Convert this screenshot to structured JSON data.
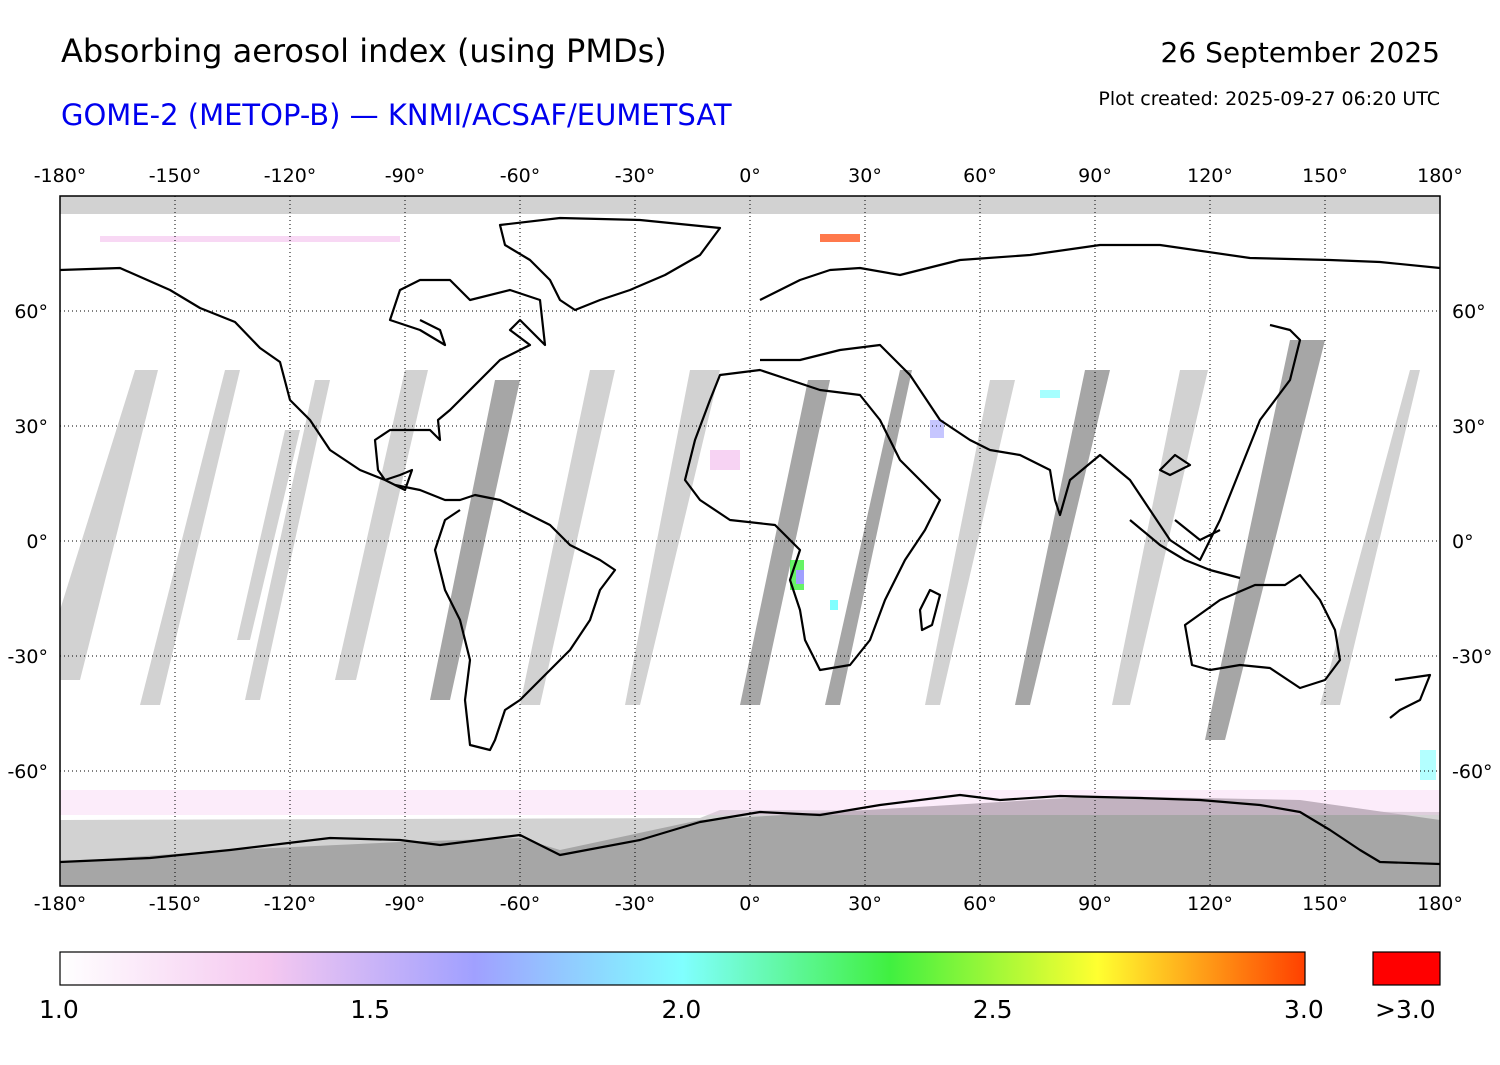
{
  "header": {
    "title": "Absorbing aerosol index (using PMDs)",
    "subtitle": "GOME-2 (METOP-B) — KNMI/ACSAF/EUMETSAT",
    "date": "26 September 2025",
    "created": "Plot created: 2025-09-27 06:20 UTC"
  },
  "map": {
    "lon_ticks": [
      "-180°",
      "-150°",
      "-120°",
      "-90°",
      "-60°",
      "-30°",
      "0°",
      "30°",
      "60°",
      "90°",
      "120°",
      "150°",
      "180°"
    ],
    "lat_ticks": [
      "60°",
      "30°",
      "0°",
      "-30°",
      "-60°"
    ],
    "lon_values": [
      -180,
      -150,
      -120,
      -90,
      -60,
      -30,
      0,
      30,
      60,
      90,
      120,
      150,
      180
    ],
    "lat_values": [
      60,
      30,
      0,
      -30,
      -60
    ],
    "lon_range": [
      -180,
      180
    ],
    "lat_range": [
      -90,
      90
    ]
  },
  "colorbar": {
    "range": [
      1.0,
      3.0
    ],
    "ticks": [
      "1.0",
      "1.5",
      "2.0",
      "2.5",
      "3.0"
    ],
    "overflow_label": ">3.0",
    "overflow_color": "#ff0000",
    "stops": [
      "#ffffff",
      "#f5c8f0",
      "#a0a0ff",
      "#80ffff",
      "#40f040",
      "#ffff30",
      "#ff4000"
    ]
  },
  "colors": {
    "no_data": "#d2d2d2",
    "no_data_dark": "#a6a6a6",
    "coastline": "#000000"
  }
}
